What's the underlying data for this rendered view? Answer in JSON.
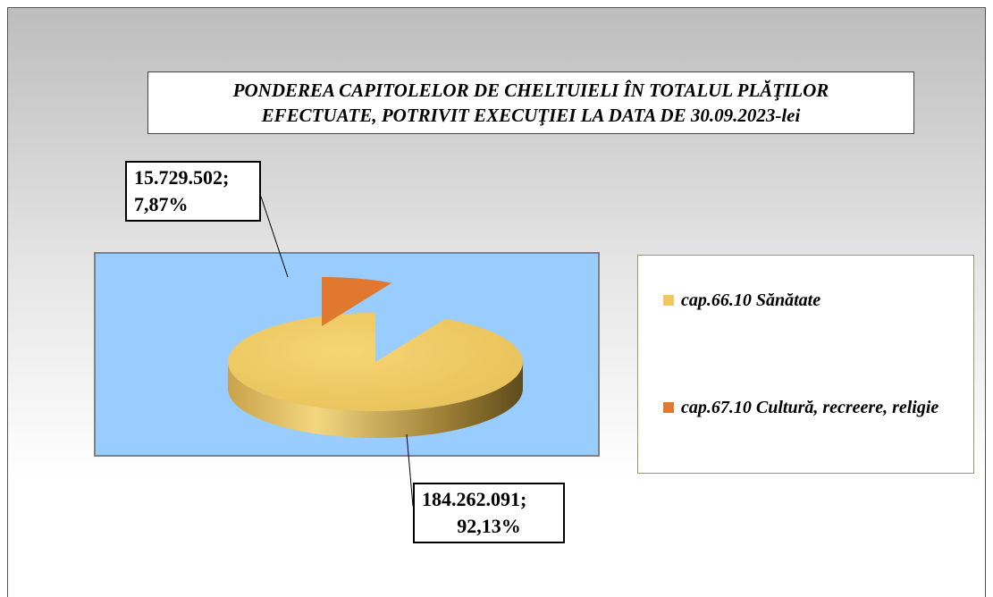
{
  "chart_data": {
    "type": "pie",
    "title": [
      "PONDEREA CAPITOLELOR DE CHELTUIELI ÎN TOTALUL PLĂŢILOR",
      "EFECTUATE, POTRIVIT EXECUŢIEI  LA DATA DE 30.09.2023-lei"
    ],
    "series": [
      {
        "name": "cap.66.10 Sănătate",
        "color": "#f0c860"
      },
      {
        "name": "cap.67.10 Cultură, recreere, religie",
        "color": "#e07830"
      }
    ],
    "values": [
      184262091,
      15729502
    ],
    "value_labels": [
      "184.262.091;",
      "15.729.502;"
    ],
    "percents": [
      92.13,
      7.87
    ],
    "percent_labels": [
      "92,13%",
      "7,87%"
    ],
    "legend": "right"
  }
}
